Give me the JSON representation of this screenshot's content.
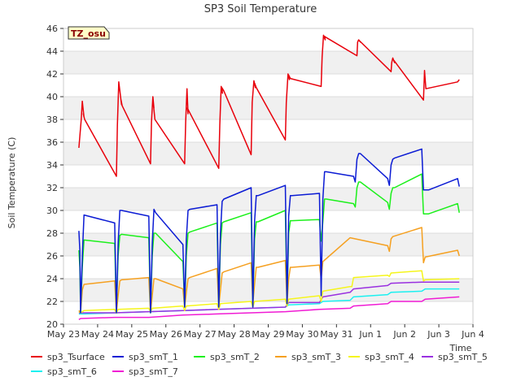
{
  "chart_data": {
    "type": "line",
    "title": "SP3 Soil Temperature",
    "xlabel": "Time",
    "ylabel": "Soil Temperature (C)",
    "badge": "TZ_osu",
    "ylim": [
      20,
      46
    ],
    "xlim": [
      0,
      12
    ],
    "yticks": [
      20,
      22,
      24,
      26,
      28,
      30,
      32,
      34,
      36,
      38,
      40,
      42,
      44,
      46
    ],
    "xticks": [
      0,
      1,
      2,
      3,
      4,
      5,
      6,
      7,
      8,
      9,
      10,
      11,
      12
    ],
    "xtick_labels": [
      "May 23",
      "May 24",
      "May 25",
      "May 26",
      "May 27",
      "May 28",
      "May 29",
      "May 30",
      "May 31",
      "Jun 1",
      "Jun 2",
      "Jun 3",
      "Jun 4"
    ],
    "grid": "horizontal bands",
    "legend": "bottom",
    "colors": {
      "sp3_Tsurface": "#e8000b",
      "sp3_smT_1": "#0b1bd4",
      "sp3_smT_2": "#1bf01b",
      "sp3_smT_3": "#f5a020",
      "sp3_smT_4": "#f5f51b",
      "sp3_smT_5": "#9a30e0",
      "sp3_smT_6": "#1bf0f0",
      "sp3_smT_7": "#f01bd4"
    },
    "series": [
      {
        "name": "sp3_Tsurface",
        "color": "#e8000b",
        "x": [
          0.45,
          0.52,
          0.55,
          0.6,
          0.58,
          0.62,
          1.55,
          1.58,
          1.62,
          1.7,
          1.68,
          1.72,
          2.55,
          2.58,
          2.62,
          2.65,
          2.63,
          2.68,
          3.55,
          3.58,
          3.62,
          3.65,
          3.63,
          3.68,
          4.55,
          4.58,
          4.62,
          4.66,
          4.64,
          4.7,
          5.5,
          5.53,
          5.58,
          5.62,
          5.6,
          5.65,
          6.5,
          6.53,
          6.58,
          6.62,
          6.6,
          6.65,
          7.55,
          7.58,
          7.62,
          7.67,
          7.65,
          7.7,
          8.6,
          8.62,
          8.65,
          8.7,
          8.68,
          9.6,
          9.62,
          9.65,
          9.7,
          9.68,
          10.55,
          10.57,
          10.58,
          10.6,
          10.62,
          11.55,
          11.6
        ],
        "y": [
          35.5,
          38.0,
          39.6,
          38.2,
          38.5,
          38.0,
          33.0,
          37.5,
          41.3,
          39.3,
          39.8,
          39.2,
          34.1,
          37.8,
          40.0,
          39.0,
          39.5,
          38.0,
          34.1,
          37.8,
          40.7,
          38.5,
          39.0,
          38.7,
          33.7,
          37.5,
          40.9,
          40.3,
          40.8,
          40.5,
          34.9,
          39.5,
          41.4,
          40.8,
          41.2,
          40.8,
          36.2,
          39.5,
          42.0,
          41.5,
          41.9,
          41.6,
          40.9,
          43.5,
          45.4,
          45.0,
          45.3,
          45.2,
          43.6,
          44.8,
          45.0,
          44.8,
          44.9,
          42.2,
          43.0,
          43.4,
          43.0,
          43.2,
          39.7,
          41.5,
          42.3,
          41.5,
          40.7,
          41.3,
          41.5
        ]
      },
      {
        "name": "sp3_smT_1",
        "color": "#0b1bd4",
        "x": [
          0.45,
          0.48,
          0.5,
          0.55,
          0.6,
          1.5,
          1.55,
          1.6,
          1.65,
          1.7,
          2.5,
          2.55,
          2.6,
          2.65,
          2.7,
          3.5,
          3.55,
          3.6,
          3.65,
          3.7,
          4.5,
          4.55,
          4.6,
          4.65,
          4.7,
          5.5,
          5.55,
          5.6,
          5.65,
          5.7,
          6.5,
          6.55,
          6.6,
          6.65,
          6.7,
          7.5,
          7.55,
          7.6,
          7.65,
          7.7,
          8.5,
          8.55,
          8.6,
          8.65,
          8.7,
          9.5,
          9.55,
          9.6,
          9.65,
          9.7,
          10.5,
          10.55,
          10.6,
          10.65,
          10.7,
          11.55,
          11.6
        ],
        "y": [
          28.2,
          26.5,
          21.0,
          26.0,
          29.6,
          28.9,
          21.0,
          27.0,
          30.0,
          30.0,
          29.5,
          21.0,
          27.0,
          30.1,
          29.8,
          27.0,
          21.5,
          27.5,
          30.0,
          30.1,
          30.5,
          21.5,
          28.0,
          30.8,
          31.0,
          32.0,
          21.5,
          29.0,
          31.3,
          31.3,
          32.2,
          21.8,
          29.5,
          31.3,
          31.3,
          31.5,
          22.5,
          31.0,
          33.4,
          33.4,
          33.0,
          32.5,
          34.5,
          35.0,
          35.0,
          32.8,
          32.2,
          34.0,
          34.5,
          34.6,
          35.4,
          31.8,
          31.8,
          31.8,
          31.8,
          32.8,
          32.1
        ]
      },
      {
        "name": "sp3_smT_2",
        "color": "#1bf01b",
        "x": [
          0.45,
          0.48,
          0.5,
          0.55,
          0.6,
          1.5,
          1.55,
          1.6,
          1.65,
          1.7,
          2.5,
          2.55,
          2.6,
          2.65,
          2.7,
          3.5,
          3.55,
          3.6,
          3.65,
          3.7,
          4.5,
          4.55,
          4.6,
          4.65,
          4.7,
          5.5,
          5.55,
          5.6,
          5.65,
          5.7,
          6.5,
          6.55,
          6.6,
          6.65,
          6.7,
          7.5,
          7.55,
          7.6,
          7.65,
          7.7,
          8.5,
          8.55,
          8.6,
          8.65,
          8.7,
          9.5,
          9.55,
          9.6,
          9.65,
          9.7,
          10.5,
          10.55,
          10.6,
          10.65,
          10.7,
          11.55,
          11.6
        ],
        "y": [
          26.5,
          25.0,
          21.0,
          25.0,
          27.4,
          27.1,
          21.0,
          26.0,
          27.8,
          27.9,
          27.6,
          21.0,
          26.0,
          28.0,
          28.0,
          25.5,
          21.5,
          26.0,
          28.0,
          28.1,
          28.9,
          21.5,
          27.0,
          28.9,
          29.0,
          29.8,
          21.5,
          27.5,
          29.0,
          29.0,
          30.0,
          21.8,
          28.0,
          29.1,
          29.1,
          29.2,
          27.3,
          29.0,
          31.0,
          31.0,
          30.6,
          30.3,
          32.0,
          32.5,
          32.5,
          30.7,
          30.1,
          31.5,
          32.0,
          32.0,
          33.2,
          29.7,
          29.7,
          29.7,
          29.7,
          30.6,
          29.8
        ]
      },
      {
        "name": "sp3_smT_3",
        "color": "#f5a020",
        "x": [
          0.45,
          0.5,
          0.55,
          0.6,
          1.5,
          1.55,
          1.6,
          1.65,
          1.7,
          2.5,
          2.55,
          2.6,
          2.65,
          2.7,
          3.5,
          3.55,
          3.6,
          3.65,
          3.7,
          4.5,
          4.55,
          4.6,
          4.65,
          4.7,
          5.5,
          5.55,
          5.6,
          5.65,
          5.7,
          6.5,
          6.55,
          6.6,
          6.65,
          6.7,
          7.5,
          7.55,
          7.6,
          8.4,
          9.5,
          9.55,
          9.6,
          9.65,
          10.5,
          10.55,
          10.6,
          11.55,
          11.6
        ],
        "y": [
          21.2,
          21.0,
          23.0,
          23.5,
          23.8,
          21.0,
          22.5,
          23.8,
          23.9,
          24.1,
          21.0,
          22.5,
          24.0,
          24.0,
          23.1,
          21.5,
          22.8,
          24.0,
          24.1,
          24.9,
          21.5,
          23.0,
          24.5,
          24.6,
          25.4,
          21.8,
          23.5,
          25.0,
          25.0,
          25.6,
          21.8,
          24.0,
          25.0,
          25.0,
          25.2,
          24.0,
          25.5,
          27.6,
          26.9,
          26.4,
          27.5,
          27.7,
          28.5,
          25.4,
          25.9,
          26.5,
          26.0
        ]
      },
      {
        "name": "sp3_smT_4",
        "color": "#f5f51b",
        "x": [
          0.45,
          0.5,
          0.6,
          1.5,
          1.55,
          1.6,
          2.5,
          2.55,
          2.6,
          3.5,
          3.55,
          3.6,
          4.5,
          4.55,
          4.6,
          5.5,
          5.55,
          5.6,
          6.5,
          6.55,
          6.6,
          7.5,
          7.55,
          7.6,
          8.4,
          8.45,
          8.5,
          9.5,
          9.55,
          9.6,
          10.5,
          10.55,
          10.6,
          11.6
        ],
        "y": [
          21.1,
          21.0,
          21.2,
          21.3,
          21.0,
          21.3,
          21.4,
          21.1,
          21.4,
          21.6,
          21.2,
          21.6,
          21.8,
          21.3,
          21.8,
          22.0,
          21.5,
          22.0,
          22.2,
          21.6,
          22.2,
          22.5,
          22.0,
          22.9,
          23.3,
          23.3,
          24.1,
          24.3,
          24.2,
          24.5,
          24.7,
          23.8,
          23.9,
          24.0
        ]
      },
      {
        "name": "sp3_smT_5",
        "color": "#9a30e0",
        "x": [
          0.45,
          0.6,
          1.5,
          2.5,
          3.5,
          4.5,
          5.5,
          6.5,
          6.6,
          7.5,
          7.6,
          8.4,
          8.5,
          9.5,
          9.6,
          10.5,
          10.6,
          11.6
        ],
        "y": [
          21.0,
          21.0,
          21.0,
          21.1,
          21.2,
          21.3,
          21.4,
          21.5,
          21.9,
          21.9,
          22.4,
          22.8,
          23.1,
          23.4,
          23.6,
          23.7,
          23.7,
          23.7
        ]
      },
      {
        "name": "sp3_smT_6",
        "color": "#1bf0f0",
        "x": [
          0.45,
          0.6,
          1.5,
          2.5,
          3.5,
          4.5,
          5.5,
          6.5,
          6.6,
          7.5,
          7.6,
          8.4,
          8.5,
          9.5,
          9.6,
          10.5,
          10.6,
          11.6
        ],
        "y": [
          20.9,
          20.9,
          21.0,
          21.1,
          21.2,
          21.3,
          21.4,
          21.5,
          21.7,
          21.8,
          22.0,
          22.1,
          22.4,
          22.6,
          22.8,
          22.9,
          23.1,
          23.1
        ]
      },
      {
        "name": "sp3_smT_7",
        "color": "#f01bd4",
        "x": [
          0.45,
          0.5,
          1.5,
          2.5,
          3.5,
          4.5,
          5.5,
          6.5,
          7.5,
          8.4,
          8.5,
          9.5,
          9.6,
          10.5,
          10.6,
          11.6
        ],
        "y": [
          20.4,
          20.5,
          20.6,
          20.6,
          20.8,
          20.9,
          21.0,
          21.1,
          21.3,
          21.4,
          21.6,
          21.8,
          22.0,
          22.0,
          22.2,
          22.4
        ]
      }
    ]
  }
}
